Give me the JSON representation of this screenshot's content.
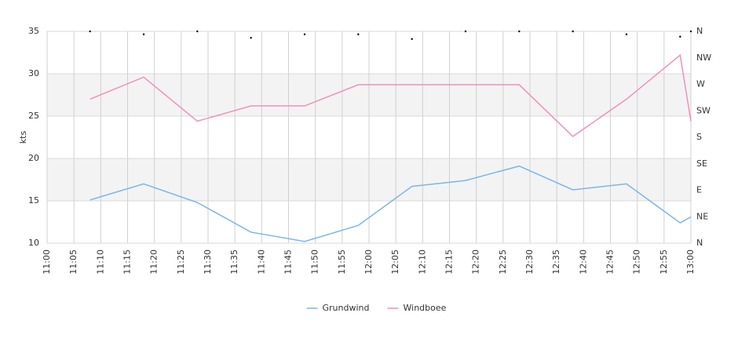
{
  "chart_data": {
    "type": "line",
    "y_label": "kts",
    "xlim": [
      "11:00",
      "13:00"
    ],
    "xticks": [
      "11:00",
      "11:05",
      "11:10",
      "11:15",
      "11:20",
      "11:25",
      "11:30",
      "11:35",
      "11:40",
      "11:45",
      "11:50",
      "11:55",
      "12:00",
      "12:05",
      "12:10",
      "12:15",
      "12:20",
      "12:25",
      "12:30",
      "12:35",
      "12:40",
      "12:45",
      "12:50",
      "12:55",
      "13:00"
    ],
    "ylim": [
      10,
      35
    ],
    "yticks": [
      10,
      15,
      20,
      25,
      30,
      35
    ],
    "y2lim": [
      0,
      360
    ],
    "y2ticks": [
      {
        "value": 0,
        "label": "N"
      },
      {
        "value": 45,
        "label": "NE"
      },
      {
        "value": 90,
        "label": "E"
      },
      {
        "value": 135,
        "label": "SE"
      },
      {
        "value": 180,
        "label": "S"
      },
      {
        "value": 225,
        "label": "SW"
      },
      {
        "value": 270,
        "label": "W"
      },
      {
        "value": 315,
        "label": "NW"
      },
      {
        "value": 360,
        "label": "N"
      }
    ],
    "plot_bands": [
      [
        15,
        20
      ],
      [
        25,
        30
      ]
    ],
    "grid": true,
    "legend": "bottom",
    "x": [
      "11:08",
      "11:18",
      "11:28",
      "11:38",
      "11:48",
      "11:58",
      "12:08",
      "12:18",
      "12:28",
      "12:38",
      "12:48",
      "12:58",
      "13:00"
    ],
    "series": [
      {
        "name": "Grundwind",
        "color": "#7cb5ec",
        "values": [
          15.1,
          17.0,
          14.8,
          11.3,
          10.2,
          12.1,
          16.7,
          17.4,
          19.1,
          16.3,
          17.0,
          12.4,
          13.1
        ]
      },
      {
        "name": "Windboee",
        "color": "#f28fbd",
        "values": [
          27.0,
          29.6,
          24.4,
          26.2,
          26.2,
          28.7,
          28.7,
          28.7,
          28.7,
          22.6,
          27.0,
          32.2,
          24.4
        ]
      }
    ],
    "direction": {
      "axis": "y2",
      "color": "#000000",
      "values": [
        360,
        355,
        360,
        349,
        355,
        355,
        347,
        360,
        360,
        360,
        355,
        351,
        360
      ]
    }
  }
}
